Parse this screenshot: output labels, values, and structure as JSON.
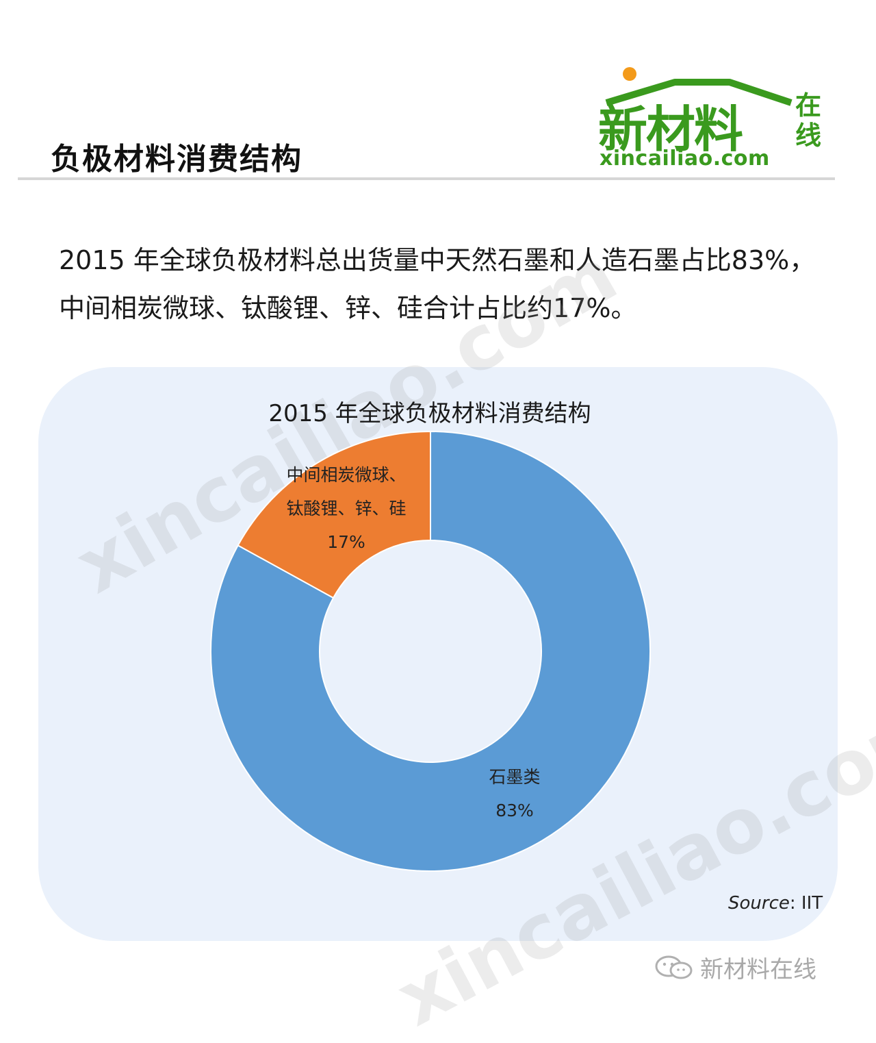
{
  "header": {
    "title": "负极材料消费结构",
    "logo": {
      "name": "新材料",
      "side": "在线",
      "url": "xincailiao.com"
    }
  },
  "summary": "2015 年全球负极材料总出货量中天然石墨和人造石墨占比83%，中间相炭微球、钛酸锂、锌、硅合计占比约17%。",
  "chart_data": {
    "type": "pie",
    "title": "2015 年全球负极材料消费结构",
    "donut": true,
    "series": [
      {
        "name": "石墨类",
        "value": 83,
        "label_lines": [
          "石墨类",
          "83%"
        ],
        "color": "#5b9bd5"
      },
      {
        "name": "中间相炭微球、钛酸锂、锌、硅",
        "value": 17,
        "label_lines": [
          "中间相炭微球、",
          "钛酸锂、锌、硅",
          "17%"
        ],
        "color": "#ed7d31"
      }
    ]
  },
  "source": {
    "label": "Source",
    "value": ": IIT"
  },
  "watermarks": [
    "xincailiao.com",
    "xincailiao.com"
  ],
  "wechat": {
    "name": "新材料在线",
    "icon": "wechat-icon"
  }
}
